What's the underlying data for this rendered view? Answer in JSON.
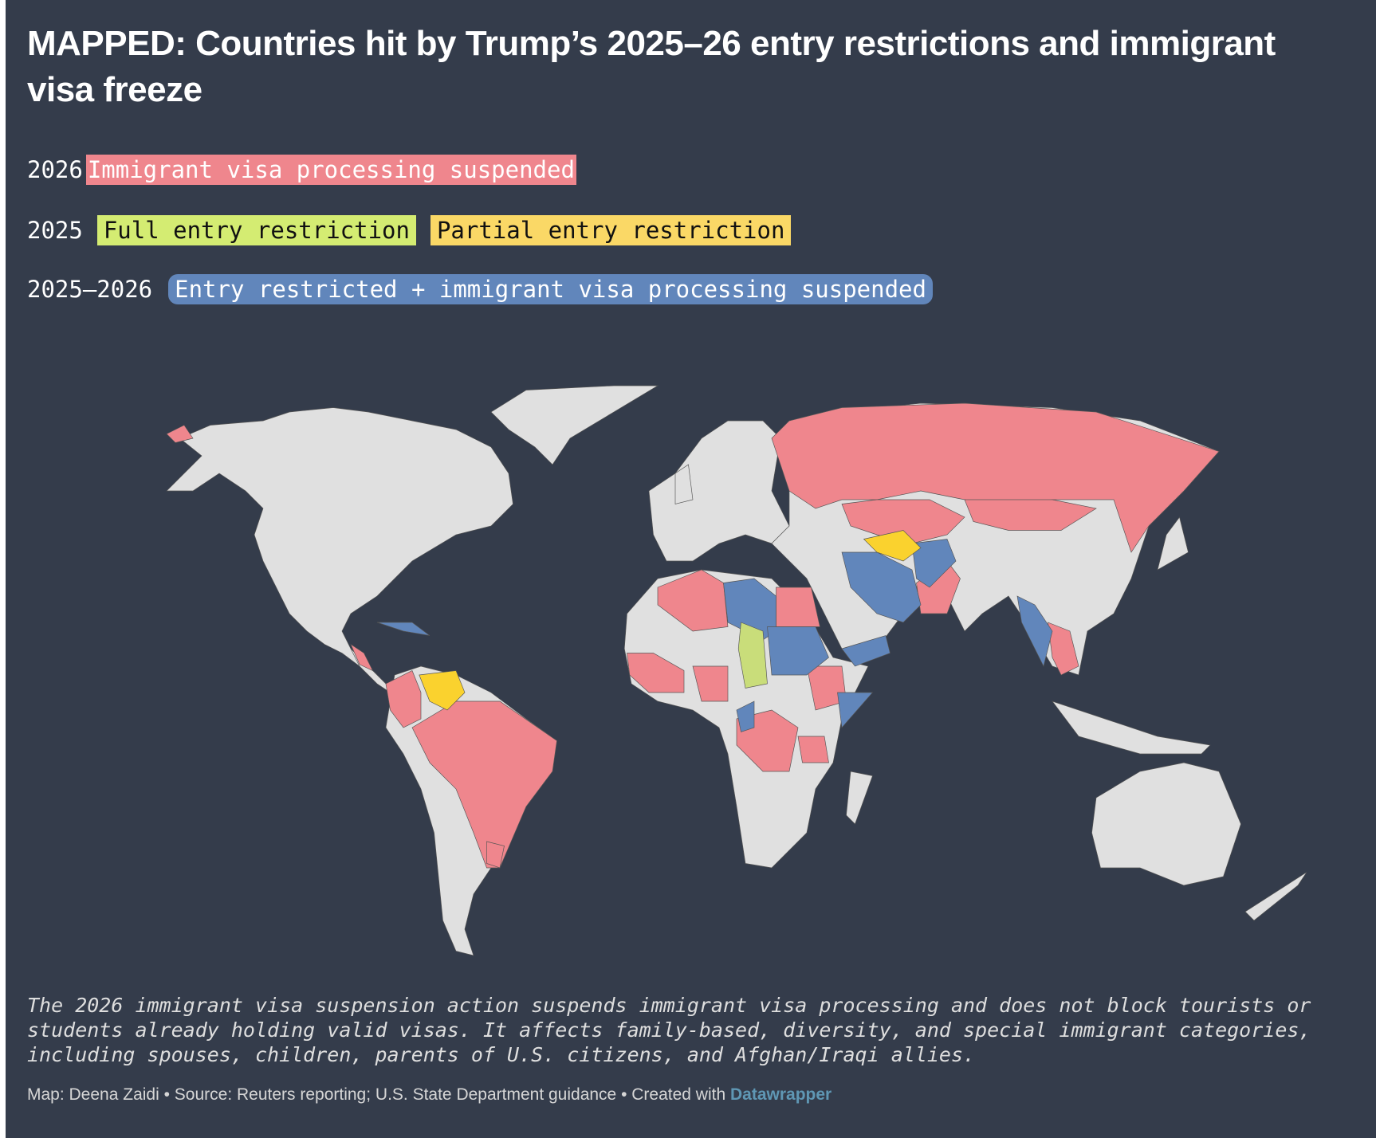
{
  "title": "MAPPED: Countries hit by Trump’s 2025–26 entry restrictions and immigrant visa freeze",
  "legend": {
    "row_2026": {
      "year": "2026",
      "label": "Immigrant visa processing suspended",
      "color": "#ef868d"
    },
    "row_2025": {
      "year": "2025",
      "full_label": "Full entry restriction",
      "full_color": "#d4ec72",
      "partial_label": "Partial entry restriction",
      "partial_color": "#fad866"
    },
    "row_both": {
      "year": "2025–2026",
      "label": "Entry restricted + immigrant visa processing suspended",
      "color": "#6186bb"
    }
  },
  "map": {
    "land_color": "#e0e0e0",
    "background": "#343c4b"
  },
  "caption": "The 2026 immigrant visa suspension action suspends immigrant visa processing and does not block tourists or students already holding valid visas. It affects family-based, diversity, and special immigrant categories, including spouses, children, parents of U.S. citizens, and Afghan/Iraqi allies.",
  "footer": {
    "credit": "Map: Deena Zaidi • Source: Reuters reporting; U.S. State Department guidance • Created with ",
    "tool": "Datawrapper"
  }
}
